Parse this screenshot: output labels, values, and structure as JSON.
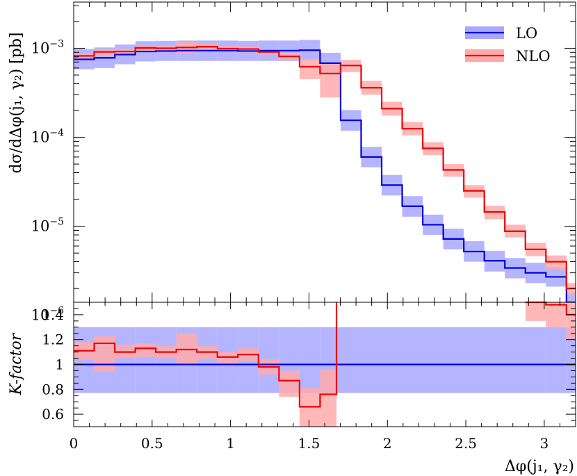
{
  "chart_data": [
    {
      "type": "line",
      "subtype": "step-histogram-with-uncertainty-bands",
      "panel": "main",
      "ylabel": "dσ/dΔφ(j₁, γ₂) [pb]",
      "yscale": "log",
      "ylim": [
        1.4e-06,
        0.0033
      ],
      "xlim": [
        0,
        3.2
      ],
      "yticks": [
        {
          "value": 0.001,
          "label_base": "10",
          "label_exp": "−3"
        },
        {
          "value": 0.0001,
          "label_base": "10",
          "label_exp": "−4"
        },
        {
          "value": 1e-05,
          "label_base": "10",
          "label_exp": "−5"
        },
        {
          "value": 1e-06,
          "label_base": "10",
          "label_exp": "−6"
        }
      ],
      "legend_position": "top-right",
      "bin_edges": [
        0,
        0.1309,
        0.2618,
        0.3927,
        0.5236,
        0.6545,
        0.7854,
        0.9163,
        1.0472,
        1.1781,
        1.309,
        1.4399,
        1.5708,
        1.7017,
        1.8326,
        1.9635,
        2.0944,
        2.2253,
        2.3562,
        2.4871,
        2.618,
        2.7489,
        2.8798,
        3.0107,
        3.1416,
        3.2
      ],
      "series": [
        {
          "name": "LO",
          "color": "#0000dd",
          "band_color": "#a8a8ff",
          "values": [
            0.00075,
            0.00078,
            0.00085,
            0.00092,
            0.00093,
            0.00094,
            0.00094,
            0.00094,
            0.00093,
            0.00094,
            0.00094,
            0.00095,
            0.00068,
            0.000155,
            6e-05,
            2.9e-05,
            1.68e-05,
            1.04e-05,
            7.2e-06,
            5.2e-06,
            4.1e-06,
            3.4e-06,
            3e-06,
            2.7e-06,
            1.4e-06,
            1.4e-06
          ],
          "lower": [
            0.00058,
            0.0006,
            0.00066,
            0.00071,
            0.00072,
            0.00072,
            0.00072,
            0.00072,
            0.00072,
            0.00072,
            0.00072,
            0.00073,
            0.00052,
            0.000118,
            4.6e-05,
            2.22e-05,
            1.28e-05,
            8e-06,
            5.5e-06,
            4e-06,
            3.1e-06,
            2.6e-06,
            2.3e-06,
            2.1e-06,
            1.1e-06,
            1.1e-06
          ],
          "upper": [
            0.00098,
            0.00102,
            0.0011,
            0.0012,
            0.00121,
            0.00122,
            0.00122,
            0.00122,
            0.00121,
            0.00122,
            0.00122,
            0.00124,
            0.00089,
            0.000202,
            7.8e-05,
            3.77e-05,
            2.18e-05,
            1.35e-05,
            9.4e-06,
            6.8e-06,
            5.3e-06,
            4.4e-06,
            3.9e-06,
            3.5e-06,
            1.8e-06,
            1.8e-06
          ]
        },
        {
          "name": "NLO",
          "color": "#ee0000",
          "band_color": "#ffaaaa",
          "values": [
            0.00082,
            0.00091,
            0.00092,
            0.00101,
            0.001,
            0.00102,
            0.00104,
            0.00099,
            0.00098,
            0.00091,
            0.00081,
            0.00062,
            0.00052,
            0.00064,
            0.00036,
            0.00021,
            0.000125,
            7.5e-05,
            4.3e-05,
            2.5e-05,
            1.45e-05,
            8.8e-06,
            5.5e-06,
            4e-06,
            2e-06,
            2e-06
          ],
          "lower": [
            0.00077,
            0.00082,
            0.00086,
            0.00094,
            0.00093,
            0.00088,
            0.00095,
            0.00092,
            0.0009,
            0.00085,
            0.00074,
            0.00045,
            0.00028,
            0.00054,
            0.0003,
            0.000175,
            0.000105,
            6.3e-05,
            3.6e-05,
            2.1e-05,
            1.2e-05,
            7.5e-06,
            4.6e-06,
            3.3e-06,
            1.7e-06,
            1.7e-06
          ],
          "upper": [
            0.00088,
            0.00097,
            0.00099,
            0.00108,
            0.00107,
            0.00118,
            0.00112,
            0.00106,
            0.00105,
            0.00098,
            0.00089,
            0.00076,
            0.00068,
            0.00074,
            0.00043,
            0.00025,
            0.000148,
            8.8e-05,
            5e-05,
            2.9e-05,
            1.7e-05,
            1.04e-05,
            6.5e-06,
            4.7e-06,
            2.3e-06,
            2.3e-06
          ]
        }
      ]
    },
    {
      "type": "line",
      "subtype": "ratio-panel",
      "panel": "ratio",
      "ylabel": "K-factor",
      "xlabel": "Δφ(j₁, γ₂)",
      "ylim": [
        0.5,
        1.5
      ],
      "xlim": [
        0,
        3.2
      ],
      "yticks": [
        "0.6",
        "0.8",
        "1",
        "1.2",
        "1.4"
      ],
      "xticks": [
        "0",
        "0.5",
        "1",
        "1.5",
        "2",
        "2.5",
        "3"
      ],
      "bin_edges": [
        0,
        0.1309,
        0.2618,
        0.3927,
        0.5236,
        0.6545,
        0.7854,
        0.9163,
        1.0472,
        1.1781,
        1.309,
        1.4399,
        1.5708,
        1.6755,
        3.0107,
        3.1416,
        3.2
      ],
      "series": [
        {
          "name": "LO",
          "color": "#0000dd",
          "band_color": "#a8a8ff",
          "values": [
            1,
            1,
            1,
            1,
            1,
            1,
            1,
            1,
            1,
            1,
            1,
            1,
            1,
            1,
            1,
            1
          ],
          "lower": [
            0.77,
            0.77,
            0.77,
            0.77,
            0.77,
            0.77,
            0.77,
            0.77,
            0.77,
            0.77,
            0.77,
            0.77,
            0.77,
            0.77,
            0.77,
            0.77
          ],
          "upper": [
            1.3,
            1.3,
            1.3,
            1.3,
            1.3,
            1.3,
            1.3,
            1.3,
            1.3,
            1.3,
            1.3,
            1.3,
            1.3,
            1.3,
            1.3,
            1.3
          ]
        },
        {
          "name": "NLO",
          "color": "#ee0000",
          "band_color": "#ffaaaa",
          "values": [
            1.11,
            1.17,
            1.1,
            1.13,
            1.1,
            1.12,
            1.1,
            1.06,
            1.08,
            0.98,
            0.87,
            0.66,
            0.76
          ],
          "lower": [
            1.04,
            0.94,
            1.05,
            1.06,
            1.05,
            0.99,
            1.04,
            1.01,
            1.03,
            0.92,
            0.74,
            0.5,
            0.5
          ],
          "upper": [
            1.18,
            1.23,
            1.16,
            1.17,
            1.15,
            1.25,
            1.15,
            1.1,
            1.13,
            1.04,
            0.95,
            0.81,
            0.96
          ],
          "jump_at_x": 1.6755,
          "tail_bins": {
            "edges": [
              2.7489,
              2.8798,
              3.0107,
              3.1416,
              3.2
            ],
            "values": [
              null,
              1.52,
              1.48,
              1.4
            ],
            "lower": [
              null,
              1.35,
              1.3,
              1.2
            ],
            "upper": [
              null,
              1.5,
              1.5,
              1.5
            ]
          }
        }
      ]
    }
  ]
}
